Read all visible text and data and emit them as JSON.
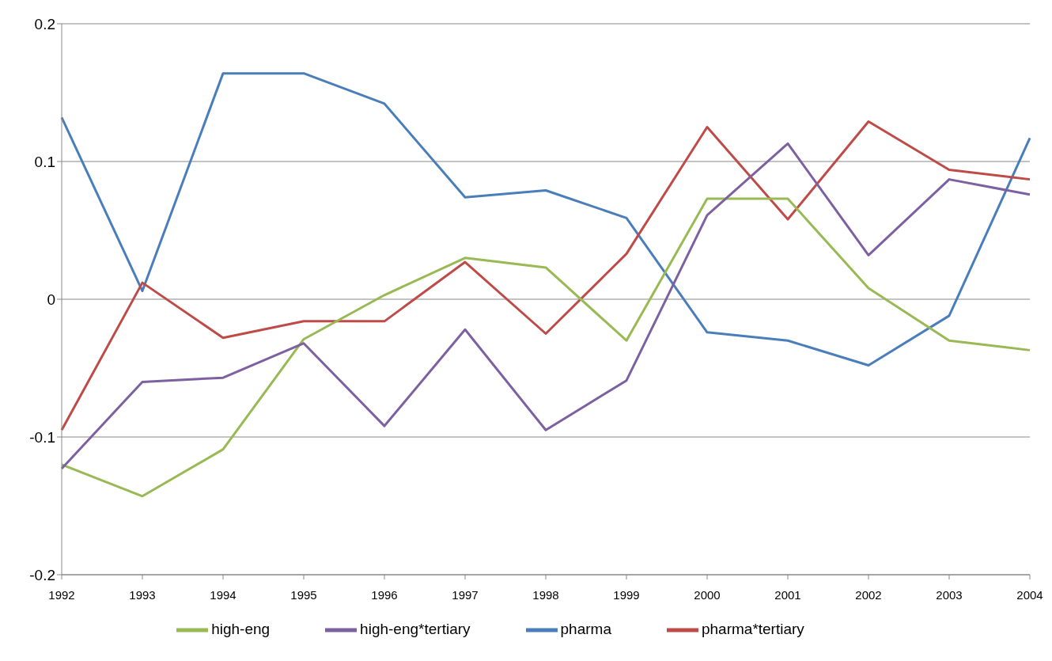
{
  "chart_data": {
    "type": "line",
    "categories": [
      "1992",
      "1993",
      "1994",
      "1995",
      "1996",
      "1997",
      "1998",
      "1999",
      "2000",
      "2001",
      "2002",
      "2003",
      "2004"
    ],
    "series": [
      {
        "name": "pharma",
        "color": "#4a7ebb",
        "values": [
          0.132,
          0.006,
          0.164,
          0.164,
          0.142,
          0.074,
          0.079,
          0.059,
          -0.024,
          -0.03,
          -0.048,
          -0.012,
          0.117
        ]
      },
      {
        "name": "pharma*tertiary",
        "color": "#be4b48",
        "values": [
          -0.095,
          0.012,
          -0.028,
          -0.016,
          -0.016,
          0.027,
          -0.025,
          0.033,
          0.125,
          0.058,
          0.129,
          0.094,
          0.087
        ]
      },
      {
        "name": "high-eng",
        "color": "#98b954",
        "values": [
          -0.12,
          -0.143,
          -0.109,
          -0.029,
          0.003,
          0.03,
          0.023,
          -0.03,
          0.073,
          0.073,
          0.008,
          -0.03,
          -0.037
        ]
      },
      {
        "name": "high-eng*tertiary",
        "color": "#7d60a0",
        "values": [
          -0.123,
          -0.06,
          -0.057,
          -0.032,
          -0.092,
          -0.022,
          -0.095,
          -0.059,
          0.061,
          0.113,
          0.032,
          0.087,
          0.076
        ]
      }
    ],
    "ylim": [
      -0.2,
      0.2
    ],
    "yticks": [
      -0.2,
      -0.1,
      0,
      0.1,
      0.2
    ],
    "grid": "y",
    "legend": "bottom",
    "marker": "none",
    "line_style": "solid"
  }
}
